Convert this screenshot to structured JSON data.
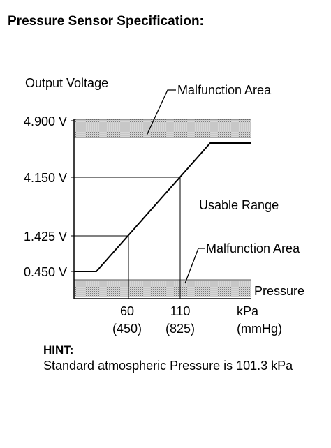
{
  "title": "Pressure Sensor Specification:",
  "chart": {
    "ylabel": "Output Voltage",
    "y_ticks": [
      "4.900 V",
      "4.150 V",
      "1.425 V",
      "0.450 V"
    ],
    "x_ticks": [
      {
        "value": "60",
        "mmhg": "(450)"
      },
      {
        "value": "110",
        "mmhg": "(825)"
      }
    ],
    "x_unit": "kPa",
    "x_unit_alt": "(mmHg)",
    "malfunction_upper": "Malfunction Area",
    "malfunction_lower": "Malfunction Area",
    "usable_range": "Usable Range",
    "pressure_label": "Pressure"
  },
  "hint": {
    "title": "HINT:",
    "body": "Standard atmospheric Pressure is 101.3 kPa"
  }
}
